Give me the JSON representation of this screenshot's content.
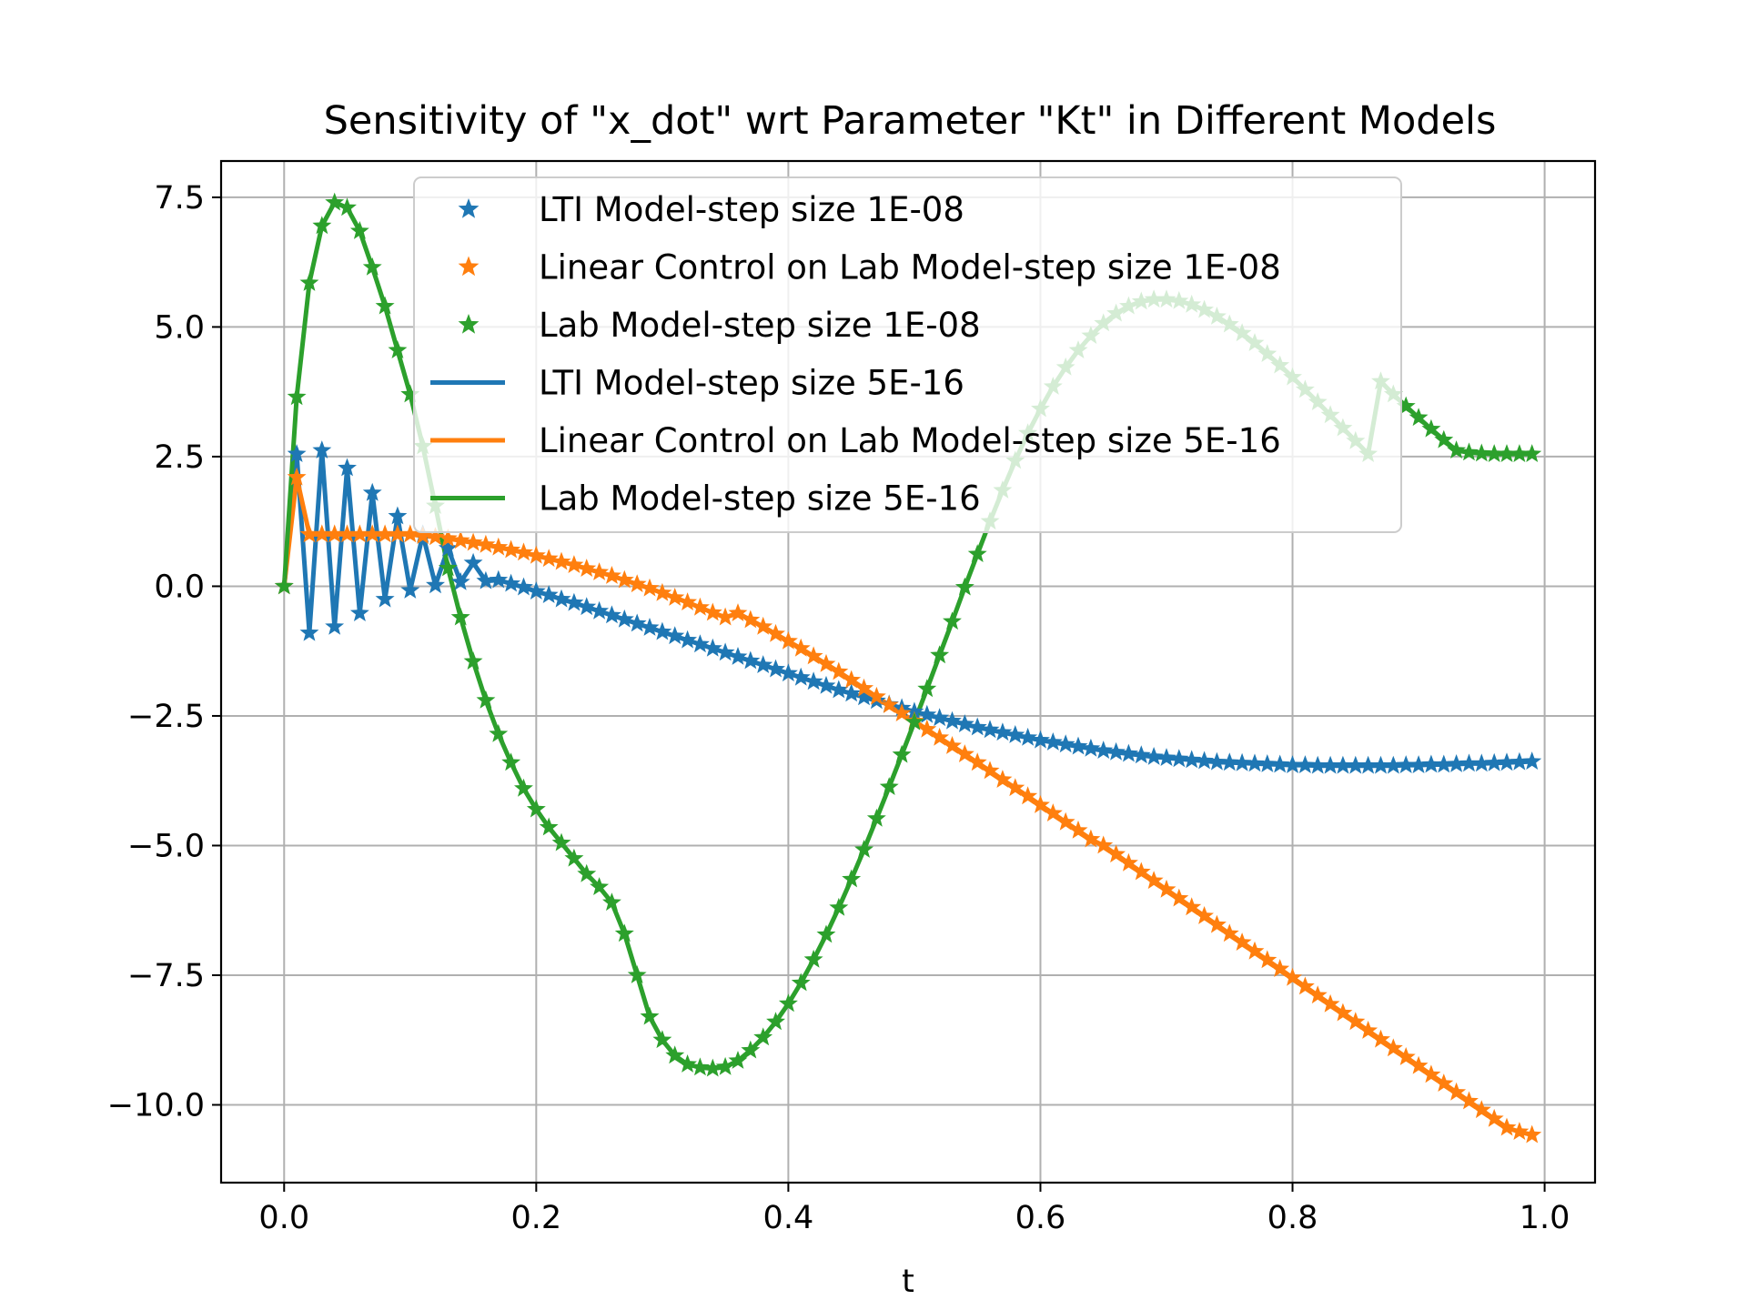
{
  "chart_data": {
    "type": "line",
    "title": "Sensitivity of \"x_dot\" wrt Parameter \"Kt\" in Different Models",
    "xlabel": "t",
    "ylabel": "",
    "xlim": [
      -0.05,
      1.04
    ],
    "ylim": [
      -11.5,
      8.2
    ],
    "grid": true,
    "legend_position": "upper-center",
    "x_ticks": [
      0.0,
      0.2,
      0.4,
      0.6,
      0.8,
      1.0
    ],
    "x_tick_labels": [
      "0.0",
      "0.2",
      "0.4",
      "0.6",
      "0.8",
      "1.0"
    ],
    "y_ticks": [
      7.5,
      5.0,
      2.5,
      0.0,
      -2.5,
      -5.0,
      -7.5,
      -10.0
    ],
    "y_tick_labels": [
      "7.5",
      "5.0",
      "2.5",
      "0.0",
      "−2.5",
      "−5.0",
      "−7.5",
      "−10.0"
    ],
    "x": [
      0.0,
      0.01,
      0.02,
      0.03,
      0.04,
      0.05,
      0.06,
      0.07,
      0.08,
      0.09,
      0.1,
      0.11,
      0.12,
      0.13,
      0.14,
      0.15,
      0.16,
      0.17,
      0.18,
      0.19,
      0.2,
      0.21,
      0.22,
      0.23,
      0.24,
      0.25,
      0.26,
      0.27,
      0.28,
      0.29,
      0.3,
      0.31,
      0.32,
      0.33,
      0.34,
      0.35,
      0.36,
      0.37,
      0.38,
      0.39,
      0.4,
      0.41,
      0.42,
      0.43,
      0.44,
      0.45,
      0.46,
      0.47,
      0.48,
      0.49,
      0.5,
      0.51,
      0.52,
      0.53,
      0.54,
      0.55,
      0.56,
      0.57,
      0.58,
      0.59,
      0.6,
      0.61,
      0.62,
      0.63,
      0.64,
      0.65,
      0.66,
      0.67,
      0.68,
      0.69,
      0.7,
      0.71,
      0.72,
      0.73,
      0.74,
      0.75,
      0.76,
      0.77,
      0.78,
      0.79,
      0.8,
      0.81,
      0.82,
      0.83,
      0.84,
      0.85,
      0.86,
      0.87,
      0.88,
      0.89,
      0.9,
      0.91,
      0.92,
      0.93,
      0.94,
      0.95,
      0.96,
      0.97,
      0.98,
      0.99
    ],
    "series": [
      {
        "name": "LTI Model",
        "color": "#1f77b4",
        "values": [
          0.0,
          2.55,
          -0.9,
          2.62,
          -0.78,
          2.28,
          -0.52,
          1.8,
          -0.25,
          1.35,
          -0.08,
          1.0,
          0.02,
          0.73,
          0.08,
          0.45,
          0.1,
          0.12,
          0.05,
          -0.02,
          -0.1,
          -0.17,
          -0.25,
          -0.32,
          -0.4,
          -0.48,
          -0.56,
          -0.64,
          -0.72,
          -0.8,
          -0.88,
          -0.96,
          -1.04,
          -1.12,
          -1.2,
          -1.28,
          -1.36,
          -1.44,
          -1.52,
          -1.6,
          -1.68,
          -1.76,
          -1.84,
          -1.92,
          -2.0,
          -2.07,
          -2.14,
          -2.21,
          -2.28,
          -2.35,
          -2.42,
          -2.48,
          -2.54,
          -2.6,
          -2.66,
          -2.72,
          -2.77,
          -2.82,
          -2.87,
          -2.92,
          -2.97,
          -3.01,
          -3.05,
          -3.09,
          -3.13,
          -3.17,
          -3.2,
          -3.23,
          -3.26,
          -3.29,
          -3.31,
          -3.33,
          -3.35,
          -3.37,
          -3.39,
          -3.4,
          -3.41,
          -3.42,
          -3.43,
          -3.44,
          -3.45,
          -3.45,
          -3.46,
          -3.46,
          -3.46,
          -3.46,
          -3.46,
          -3.46,
          -3.46,
          -3.45,
          -3.45,
          -3.44,
          -3.44,
          -3.43,
          -3.42,
          -3.42,
          -3.41,
          -3.4,
          -3.39,
          -3.38
        ]
      },
      {
        "name": "Linear Control on Lab Model",
        "color": "#ff7f0e",
        "values": [
          0.0,
          2.1,
          1.0,
          1.0,
          1.0,
          1.0,
          1.0,
          1.0,
          1.0,
          1.0,
          1.0,
          0.97,
          0.95,
          0.92,
          0.88,
          0.84,
          0.8,
          0.75,
          0.7,
          0.65,
          0.59,
          0.53,
          0.47,
          0.41,
          0.34,
          0.27,
          0.2,
          0.12,
          0.04,
          -0.04,
          -0.13,
          -0.22,
          -0.31,
          -0.41,
          -0.51,
          -0.6,
          -0.52,
          -0.65,
          -0.78,
          -0.92,
          -1.06,
          -1.2,
          -1.35,
          -1.5,
          -1.65,
          -1.81,
          -1.97,
          -2.13,
          -2.29,
          -2.45,
          -2.6,
          -2.76,
          -2.92,
          -3.08,
          -3.24,
          -3.4,
          -3.56,
          -3.73,
          -3.89,
          -4.05,
          -4.22,
          -4.38,
          -4.55,
          -4.71,
          -4.88,
          -5.0,
          -5.17,
          -5.34,
          -5.51,
          -5.68,
          -5.85,
          -6.02,
          -6.19,
          -6.36,
          -6.53,
          -6.7,
          -6.87,
          -7.04,
          -7.21,
          -7.38,
          -7.55,
          -7.72,
          -7.89,
          -8.06,
          -8.23,
          -8.4,
          -8.57,
          -8.74,
          -8.91,
          -9.08,
          -9.25,
          -9.42,
          -9.59,
          -9.76,
          -9.93,
          -10.1,
          -10.27,
          -10.44,
          -10.52,
          -10.58
        ]
      },
      {
        "name": "Lab Model",
        "color": "#2ca02c",
        "values": [
          0.0,
          3.65,
          5.85,
          6.95,
          7.4,
          7.3,
          6.85,
          6.15,
          5.4,
          4.55,
          3.7,
          2.7,
          1.55,
          0.35,
          -0.6,
          -1.45,
          -2.2,
          -2.85,
          -3.4,
          -3.9,
          -4.3,
          -4.65,
          -4.95,
          -5.25,
          -5.55,
          -5.8,
          -6.1,
          -6.7,
          -7.5,
          -8.3,
          -8.75,
          -9.05,
          -9.22,
          -9.28,
          -9.3,
          -9.27,
          -9.15,
          -8.95,
          -8.7,
          -8.4,
          -8.05,
          -7.65,
          -7.2,
          -6.72,
          -6.2,
          -5.65,
          -5.08,
          -4.48,
          -3.87,
          -3.25,
          -2.62,
          -1.98,
          -1.33,
          -0.68,
          -0.02,
          0.62,
          1.25,
          1.85,
          2.42,
          2.95,
          3.42,
          3.85,
          4.22,
          4.55,
          4.83,
          5.07,
          5.26,
          5.4,
          5.49,
          5.53,
          5.53,
          5.5,
          5.43,
          5.33,
          5.2,
          5.05,
          4.88,
          4.69,
          4.48,
          4.26,
          4.03,
          3.79,
          3.55,
          3.3,
          3.05,
          2.8,
          2.55,
          3.95,
          3.7,
          3.47,
          3.25,
          3.03,
          2.82,
          2.62,
          2.58,
          2.56,
          2.55,
          2.55,
          2.55,
          2.55
        ]
      }
    ],
    "legend": [
      {
        "label": "LTI Model-step size 1E-08",
        "color": "#1f77b4",
        "style": "star"
      },
      {
        "label": "Linear Control on Lab Model-step size 1E-08",
        "color": "#ff7f0e",
        "style": "star"
      },
      {
        "label": "Lab Model-step size 1E-08",
        "color": "#2ca02c",
        "style": "star"
      },
      {
        "label": "LTI Model-step size 5E-16",
        "color": "#1f77b4",
        "style": "line"
      },
      {
        "label": "Linear Control on Lab Model-step size 5E-16",
        "color": "#ff7f0e",
        "style": "line"
      },
      {
        "label": "Lab Model-step size 5E-16",
        "color": "#2ca02c",
        "style": "line"
      }
    ]
  }
}
